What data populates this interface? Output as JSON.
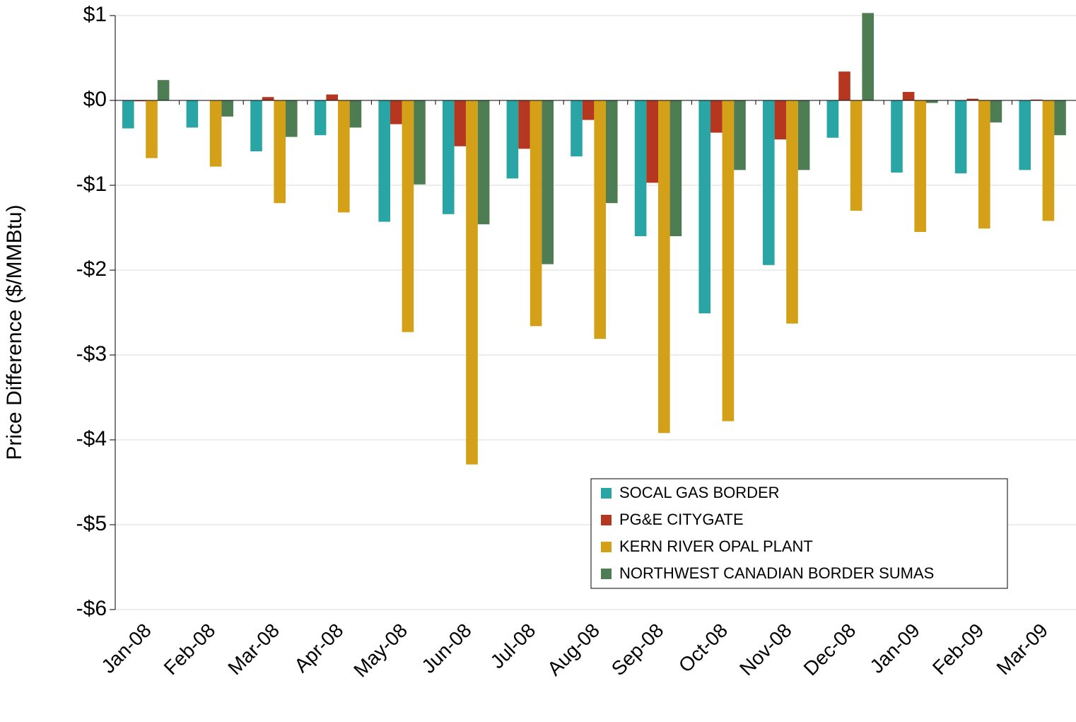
{
  "chart_data": {
    "type": "bar",
    "y_label": "Price Difference  ($/MMBtu)",
    "categories": [
      "Jan-08",
      "Feb-08",
      "Mar-08",
      "Apr-08",
      "May-08",
      "Jun-08",
      "Jul-08",
      "Aug-08",
      "Sep-08",
      "Oct-08",
      "Nov-08",
      "Dec-08",
      "Jan-09",
      "Feb-09",
      "Mar-09"
    ],
    "series": [
      {
        "name": "SOCAL GAS BORDER",
        "color": "#2aa5a5",
        "values": [
          -0.33,
          -0.32,
          -0.6,
          -0.41,
          -1.43,
          -1.34,
          -0.92,
          -0.66,
          -1.6,
          -2.51,
          -1.94,
          -0.44,
          -0.85,
          -0.86,
          -0.82
        ]
      },
      {
        "name": "PG&E CITYGATE",
        "color": "#b5371f",
        "values": [
          -0.01,
          0,
          0.04,
          0.07,
          -0.28,
          -0.54,
          -0.57,
          -0.23,
          -0.97,
          -0.38,
          -0.46,
          0.34,
          0.1,
          0.02,
          0.01
        ]
      },
      {
        "name": "KERN RIVER OPAL PLANT",
        "color": "#d4a017",
        "values": [
          -0.68,
          -0.78,
          -1.21,
          -1.32,
          -2.73,
          -4.29,
          -2.66,
          -2.81,
          -3.92,
          -3.78,
          -2.63,
          -1.3,
          -1.55,
          -1.51,
          -1.42
        ]
      },
      {
        "name": "NORTHWEST CANADIAN BORDER SUMAS",
        "color": "#4e7d54",
        "values": [
          0.24,
          -0.19,
          -0.43,
          -0.32,
          -0.99,
          -1.46,
          -1.93,
          -1.21,
          -1.6,
          -0.82,
          -0.82,
          1.03,
          -0.03,
          -0.26,
          -0.41
        ]
      }
    ],
    "ylim": [
      -6,
      1
    ],
    "yticks": [
      {
        "value": 1,
        "label": "$1"
      },
      {
        "value": 0,
        "label": "$0"
      },
      {
        "value": -1,
        "label": "-$1"
      },
      {
        "value": -2,
        "label": "-$2"
      },
      {
        "value": -3,
        "label": "-$3"
      },
      {
        "value": -4,
        "label": "-$4"
      },
      {
        "value": -5,
        "label": "-$5"
      },
      {
        "value": -6,
        "label": "-$6"
      }
    ],
    "grid": true,
    "legend_position": "lower right"
  }
}
